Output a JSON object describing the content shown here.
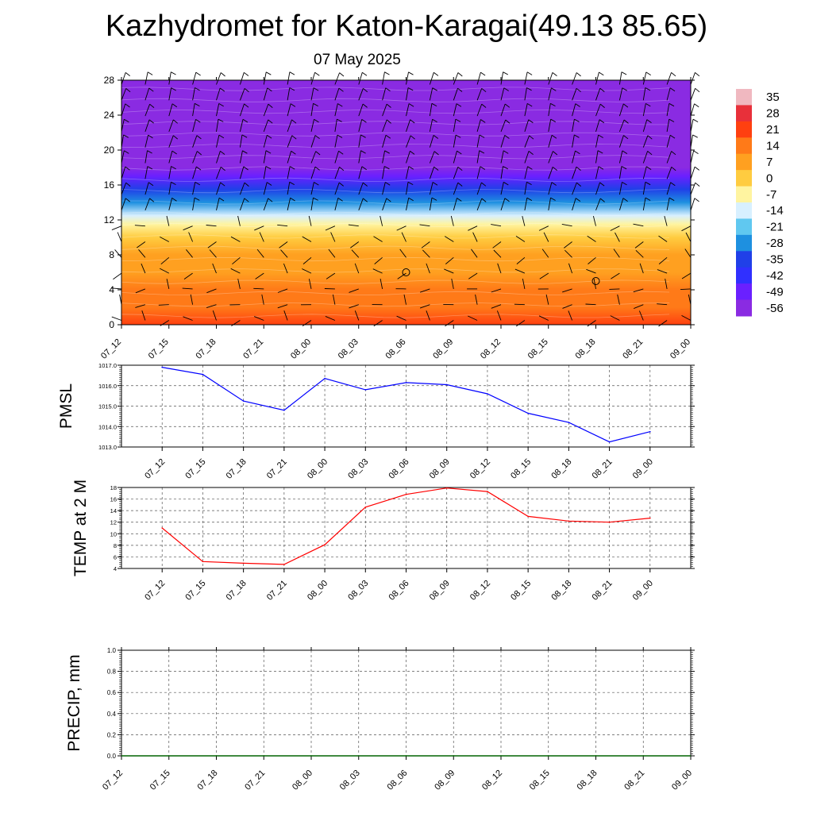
{
  "title": "Kazhydromet for Katon-Karagai(49.13 85.65)",
  "date": "07 May 2025",
  "time_labels": [
    "07_12",
    "07_15",
    "07_18",
    "07_21",
    "08_00",
    "08_03",
    "08_06",
    "08_09",
    "08_12",
    "08_15",
    "08_18",
    "08_21",
    "09_00"
  ],
  "chart_data": [
    {
      "type": "heatmap",
      "title": "",
      "y_ticks": [
        "0",
        "4",
        "8",
        "12",
        "16",
        "20",
        "24",
        "28"
      ],
      "ylim": [
        0,
        28
      ],
      "colorbar_labels": [
        "35",
        "28",
        "21",
        "14",
        "7",
        "0",
        "-7",
        "-14",
        "-21",
        "-28",
        "-35",
        "-42",
        "-49",
        "-56"
      ],
      "colorbar_colors": [
        "#f0b8c0",
        "#e8303a",
        "#ff4010",
        "#ff7a18",
        "#ffa020",
        "#ffcc40",
        "#fff4a0",
        "#d8f0ff",
        "#60c8f0",
        "#1e90e0",
        "#2040e8",
        "#3030ff",
        "#6a20ff",
        "#8a2be2"
      ],
      "temperature_profile": [
        {
          "z": 0,
          "t": 17
        },
        {
          "z": 2,
          "t": 14
        },
        {
          "z": 4,
          "t": 10
        },
        {
          "z": 6,
          "t": 7
        },
        {
          "z": 8,
          "t": 4
        },
        {
          "z": 10,
          "t": 0
        },
        {
          "z": 11.5,
          "t": -6
        },
        {
          "z": 12.5,
          "t": -14
        },
        {
          "z": 14,
          "t": -24
        },
        {
          "z": 15.5,
          "t": -36
        },
        {
          "z": 17,
          "t": -48
        },
        {
          "z": 18,
          "t": -54
        },
        {
          "z": 22,
          "t": -58
        },
        {
          "z": 28,
          "t": -60
        }
      ],
      "markers": [
        {
          "time": "08_06",
          "z": 6
        },
        {
          "time": "08_18",
          "z": 5
        }
      ]
    },
    {
      "type": "line",
      "ylabel": "PMSL",
      "ylim": [
        1013.0,
        1017.0
      ],
      "y_ticks": [
        "1013.0",
        "1014.0",
        "1015.0",
        "1016.0",
        "1017.0"
      ],
      "color": "#0000ff",
      "series": [
        {
          "values": [
            1016.9,
            1016.55,
            1015.25,
            1014.8,
            1016.35,
            1015.8,
            1016.15,
            1016.05,
            1015.6,
            1014.65,
            1014.2,
            1013.25,
            1013.75
          ]
        }
      ]
    },
    {
      "type": "line",
      "ylabel": "TEMP at 2 M",
      "ylim": [
        4,
        18
      ],
      "y_ticks": [
        "4",
        "6",
        "8",
        "10",
        "12",
        "14",
        "16",
        "18"
      ],
      "color": "#ff0000",
      "series": [
        {
          "values": [
            11.0,
            5.2,
            4.9,
            4.7,
            8.1,
            14.6,
            16.8,
            17.9,
            17.3,
            13.0,
            12.2,
            12.0,
            12.7
          ]
        }
      ]
    },
    {
      "type": "line",
      "ylabel": "PRECIP, mm",
      "ylim": [
        0.0,
        1.0
      ],
      "y_ticks": [
        "0.0",
        "0.2",
        "0.4",
        "0.6",
        "0.8",
        "1.0"
      ],
      "color": "#006400",
      "series": [
        {
          "values": [
            0,
            0,
            0,
            0,
            0,
            0,
            0,
            0,
            0,
            0,
            0,
            0,
            0
          ]
        }
      ]
    }
  ]
}
